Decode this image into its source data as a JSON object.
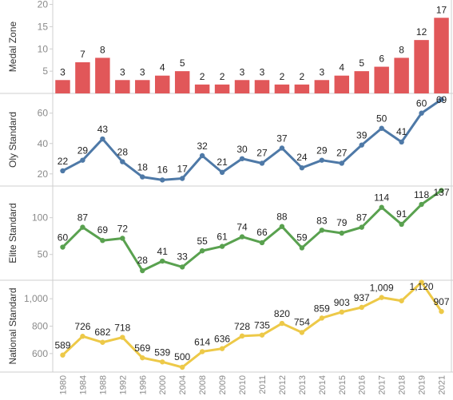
{
  "chart_data": {
    "type": "bar+line",
    "categories": [
      "1980",
      "1984",
      "1988",
      "1992",
      "1996",
      "2000",
      "2004",
      "2008",
      "2009",
      "2010",
      "2011",
      "2012",
      "2013",
      "2014",
      "2015",
      "2016",
      "2017",
      "2018",
      "2019",
      "2021"
    ],
    "panels": [
      {
        "name": "Medal Zone",
        "type": "bar",
        "color": "#e15759",
        "values": [
          3,
          7,
          8,
          3,
          3,
          4,
          5,
          2,
          2,
          3,
          3,
          2,
          2,
          3,
          4,
          5,
          6,
          8,
          12,
          17
        ],
        "labels": [
          "3",
          "7",
          "8",
          "3",
          "3",
          "4",
          "5",
          "2",
          "2",
          "3",
          "3",
          "2",
          "2",
          "3",
          "4",
          "5",
          "6",
          "8",
          "12",
          "17"
        ],
        "ylim": [
          0,
          21
        ],
        "yticks": [
          5,
          10,
          15,
          20
        ]
      },
      {
        "name": "Oly Standard",
        "type": "line",
        "color": "#4e79a7",
        "values": [
          22,
          29,
          43,
          28,
          18,
          16,
          17,
          32,
          21,
          30,
          27,
          37,
          24,
          29,
          27,
          39,
          50,
          41,
          60,
          69
        ],
        "labels": [
          "22",
          "29",
          "43",
          "28",
          "18",
          "16",
          "17",
          "32",
          "21",
          "30",
          "27",
          "37",
          "24",
          "29",
          "27",
          "39",
          "50",
          "41",
          "60",
          "69"
        ],
        "ylim": [
          12,
          73
        ],
        "yticks": [
          20,
          40,
          60
        ]
      },
      {
        "name": "Elite Standard",
        "type": "line",
        "color": "#59a14f",
        "values": [
          60,
          87,
          69,
          72,
          28,
          41,
          33,
          55,
          61,
          74,
          66,
          88,
          59,
          83,
          79,
          87,
          114,
          91,
          118,
          137
        ],
        "labels": [
          "60",
          "87",
          "69",
          "72",
          "28",
          "41",
          "33",
          "55",
          "61",
          "74",
          "66",
          "88",
          "59",
          "83",
          "79",
          "87",
          "114",
          "91",
          "118",
          "137"
        ],
        "ylim": [
          15,
          143
        ],
        "yticks": [
          50,
          100
        ]
      },
      {
        "name": "National Standard",
        "type": "line",
        "color": "#edc948",
        "values": [
          589,
          726,
          682,
          718,
          569,
          539,
          500,
          614,
          636,
          728,
          735,
          820,
          754,
          859,
          903,
          937,
          1009,
          985,
          1120,
          907
        ],
        "labels": [
          "589",
          "726",
          "682",
          "718",
          "569",
          "539",
          "500",
          "614",
          "636",
          "728",
          "735",
          "820",
          "754",
          "859",
          "903",
          "937",
          "1,009",
          "",
          "1,120",
          "907"
        ],
        "ylim": [
          465,
          1135
        ],
        "yticks": [
          600,
          800,
          1000
        ]
      }
    ]
  }
}
